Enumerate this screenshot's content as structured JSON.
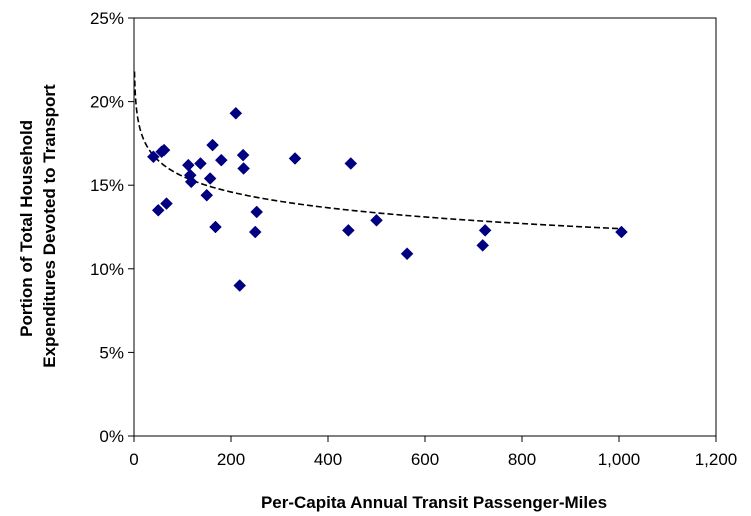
{
  "chart_data": {
    "type": "scatter",
    "title": "",
    "xlabel": "Per-Capita Annual Transit Passenger-Miles",
    "ylabel_lines": [
      "Portion of Total Household",
      "Expenditures Devoted to Transport"
    ],
    "xlim": [
      0,
      1200
    ],
    "ylim": [
      0,
      0.25
    ],
    "x_ticks": [
      0,
      200,
      400,
      600,
      800,
      1000,
      1200
    ],
    "x_tick_labels": [
      "0",
      "200",
      "400",
      "600",
      "800",
      "1,000",
      "1,200"
    ],
    "y_ticks": [
      0,
      0.05,
      0.1,
      0.15,
      0.2,
      0.25
    ],
    "y_tick_labels": [
      "0%",
      "5%",
      "10%",
      "15%",
      "20%",
      "25%"
    ],
    "grid": false,
    "legend": "none",
    "marker": "diamond",
    "marker_color": "#000080",
    "trendline": {
      "type": "logarithmic",
      "style": "dashed",
      "color": "#000000",
      "x_range": [
        1,
        1000
      ]
    },
    "series": [
      {
        "points": [
          [
            40,
            0.167
          ],
          [
            50,
            0.135
          ],
          [
            57,
            0.17
          ],
          [
            62,
            0.171
          ],
          [
            67,
            0.139
          ],
          [
            112,
            0.162
          ],
          [
            116,
            0.156
          ],
          [
            118,
            0.152
          ],
          [
            137,
            0.163
          ],
          [
            150,
            0.144
          ],
          [
            157,
            0.154
          ],
          [
            162,
            0.174
          ],
          [
            168,
            0.125
          ],
          [
            180,
            0.165
          ],
          [
            210,
            0.193
          ],
          [
            218,
            0.09
          ],
          [
            225,
            0.168
          ],
          [
            226,
            0.16
          ],
          [
            250,
            0.122
          ],
          [
            253,
            0.134
          ],
          [
            332,
            0.166
          ],
          [
            442,
            0.123
          ],
          [
            447,
            0.163
          ],
          [
            500,
            0.129
          ],
          [
            563,
            0.109
          ],
          [
            719,
            0.114
          ],
          [
            724,
            0.123
          ],
          [
            1005,
            0.122
          ]
        ]
      }
    ]
  }
}
